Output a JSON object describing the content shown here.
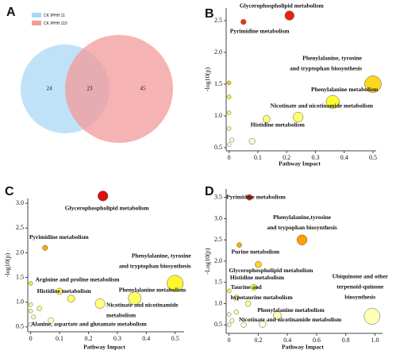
{
  "chart_data": [
    {
      "type": "venn",
      "panel_label": "A",
      "sets": [
        {
          "name": "CK IPHH 11",
          "color": "#a9d8f5"
        },
        {
          "name": "CK IPHH 110",
          "color": "#f39a9a"
        }
      ],
      "values": [
        24,
        23,
        45
      ]
    },
    {
      "type": "scatter",
      "panel_label": "B",
      "x_label": "Pathway Impact",
      "y_label": "-log10(p)",
      "xlim": [
        -0.01,
        0.5
      ],
      "ylim": [
        0.45,
        2.7
      ],
      "xticks": [
        0,
        0.1,
        0.2,
        0.3,
        0.4,
        0.5
      ],
      "yticks": [
        0.5,
        {
          "value": 1,
          "label": "1.0"
        },
        1.5,
        {
          "value": 2,
          "label": "2.0"
        },
        2.5
      ],
      "colormap": [
        "#ffffff",
        "#ffff33",
        "#ff9900",
        "#dd1111"
      ],
      "points": [
        {
          "x": 0.21,
          "y": 2.58,
          "label": [
            "Glycerophospholipid metabolism"
          ]
        },
        {
          "x": 0.05,
          "y": 2.48,
          "label": [
            "Pyrimidine metabolism"
          ]
        },
        {
          "x": 0.5,
          "y": 1.5,
          "label": [
            "Phenylalanine, tyrosine",
            "and tryptophan biosynthesis"
          ]
        },
        {
          "x": 0.36,
          "y": 1.22,
          "label": [
            "Phenylalanine metabolism"
          ]
        },
        {
          "x": 0.24,
          "y": 0.98,
          "label": [
            "Nicotinate and nicotinamide metabolism"
          ]
        },
        {
          "x": 0.13,
          "y": 0.95,
          "label": [
            "Histidine metabolism"
          ]
        },
        {
          "x": 0.0,
          "y": 1.52
        },
        {
          "x": 0.0,
          "y": 1.3
        },
        {
          "x": 0.0,
          "y": 1.05
        },
        {
          "x": 0.0,
          "y": 0.8
        },
        {
          "x": 0.01,
          "y": 0.62
        },
        {
          "x": 0.08,
          "y": 0.6
        },
        {
          "x": 0.0,
          "y": 0.55
        }
      ]
    },
    {
      "type": "scatter",
      "panel_label": "C",
      "x_label": "Pathway Impact",
      "y_label": "-log10(p)",
      "xlim": [
        -0.01,
        0.52
      ],
      "ylim": [
        0.4,
        3.1
      ],
      "xticks": [
        0,
        0.1,
        0.2,
        0.3,
        0.4,
        0.5
      ],
      "yticks": [
        0.5,
        {
          "value": 1,
          "label": "1.0"
        },
        1.5,
        {
          "value": 2,
          "label": "2.0"
        },
        2.5,
        {
          "value": 3,
          "label": "3.0"
        }
      ],
      "colormap": [
        "#ffffff",
        "#ffff33",
        "#ff9900",
        "#dd1111"
      ],
      "points": [
        {
          "x": 0.25,
          "y": 3.15,
          "label": [
            "Glycerophospholipid metabolism"
          ]
        },
        {
          "x": 0.05,
          "y": 2.1,
          "label": [
            "Pyrimidine metabolism"
          ]
        },
        {
          "x": 0.0,
          "y": 1.38,
          "label": [
            "Arginine and proline metabolism"
          ]
        },
        {
          "x": 0.5,
          "y": 1.38,
          "label": [
            "Phenylalanine, tyrosine",
            "and tryptophan biosynthesis"
          ]
        },
        {
          "x": 0.36,
          "y": 1.08,
          "label": [
            "Phenylalanine metabolism"
          ]
        },
        {
          "x": 0.14,
          "y": 1.07,
          "label": [
            "Histidine metabolism"
          ]
        },
        {
          "x": 0.24,
          "y": 0.97,
          "label": [
            "Nicotinate and nicotinamide",
            "metabolism"
          ]
        },
        {
          "x": 0.07,
          "y": 0.63,
          "label": [
            "Alanine, aspartate and glutamate metabolism"
          ]
        },
        {
          "x": 0.1,
          "y": 1.22
        },
        {
          "x": 0.0,
          "y": 0.95
        },
        {
          "x": 0.03,
          "y": 0.87
        },
        {
          "x": 0.0,
          "y": 0.82
        },
        {
          "x": 0.01,
          "y": 0.7
        },
        {
          "x": 0.0,
          "y": 0.55
        }
      ]
    },
    {
      "type": "scatter",
      "panel_label": "D",
      "x_label": "Pathway Impact",
      "y_label": "-Log10(p)",
      "xlim": [
        -0.02,
        1.03
      ],
      "ylim": [
        0.3,
        3.7
      ],
      "xticks": [
        0,
        0.2,
        0.4,
        0.6,
        0.8,
        {
          "value": 1,
          "label": "1.0"
        }
      ],
      "yticks": [
        0.5,
        {
          "value": 1,
          "label": "1.0"
        },
        1.5,
        {
          "value": 2,
          "label": "2.0"
        },
        2.5,
        {
          "value": 3,
          "label": "3.0"
        },
        3.5
      ],
      "colormap": [
        "#ffffff",
        "#ffff33",
        "#ff9900",
        "#dd1111"
      ],
      "points": [
        {
          "x": 0.14,
          "y": 3.5,
          "label": [
            "Pyrimidine metabolism"
          ]
        },
        {
          "x": 0.5,
          "y": 2.5,
          "label": [
            "Phenylalanine,tyrosine",
            "and trypophan biosynthesis"
          ]
        },
        {
          "x": 0.07,
          "y": 2.38,
          "label": [
            "Purine metabolism"
          ]
        },
        {
          "x": 0.2,
          "y": 1.92,
          "label": [
            "Glycerophospholipid metabolism"
          ]
        },
        {
          "x": 0.17,
          "y": 1.38,
          "label": [
            "Histidine metabolism"
          ]
        },
        {
          "x": 0.13,
          "y": 1.0,
          "label": [
            "Taurine and",
            "hypotaurine metabolism"
          ]
        },
        {
          "x": 0.98,
          "y": 0.7,
          "label": [
            "Ubiquinone and other",
            "terpenoid-quinone",
            "biosynthesis"
          ]
        },
        {
          "x": 0.33,
          "y": 0.72,
          "label": [
            "Phenylalanine metabolism"
          ]
        },
        {
          "x": 0.23,
          "y": 0.52,
          "label": [
            "Nicotinate and nicotinamide metabolism"
          ]
        },
        {
          "x": 0.0,
          "y": 1.3
        },
        {
          "x": 0.05,
          "y": 1.15
        },
        {
          "x": 0.05,
          "y": 0.8
        },
        {
          "x": 0.0,
          "y": 0.75
        },
        {
          "x": 0.02,
          "y": 0.6
        },
        {
          "x": 0.0,
          "y": 0.5
        },
        {
          "x": 0.1,
          "y": 0.5
        }
      ]
    }
  ]
}
